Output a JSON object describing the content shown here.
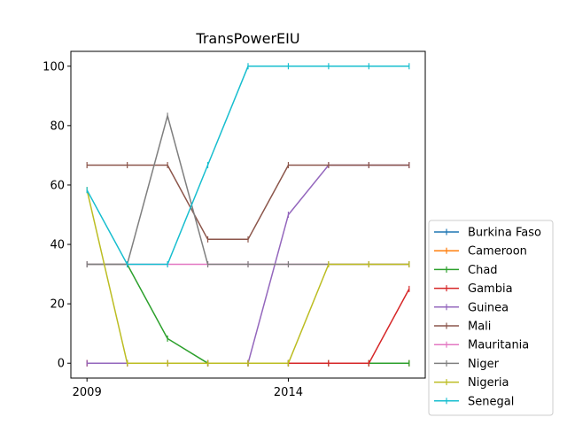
{
  "chart_data": {
    "type": "line",
    "title": "TransPowerEIU",
    "xlabel": "",
    "ylabel": "",
    "x": [
      2009,
      2010,
      2011,
      2012,
      2013,
      2014,
      2015,
      2016,
      2017
    ],
    "xlim": [
      2008.6,
      2017.4
    ],
    "ylim": [
      -5,
      105
    ],
    "xticks": [
      2009,
      2014
    ],
    "yticks": [
      0,
      20,
      40,
      60,
      80,
      100
    ],
    "grid": false,
    "legend_position": "lower-right-outside",
    "series": [
      {
        "name": "Burkina Faso",
        "color": "#1f77b4",
        "values": [
          0,
          0,
          0,
          0,
          0,
          0,
          0,
          0,
          0
        ]
      },
      {
        "name": "Cameroon",
        "color": "#ff7f0e",
        "values": [
          0,
          0,
          0,
          0,
          0,
          0,
          0,
          0,
          0
        ]
      },
      {
        "name": "Chad",
        "color": "#2ca02c",
        "values": [
          33.3,
          33.3,
          8.3,
          0,
          0,
          0,
          0,
          0,
          0
        ]
      },
      {
        "name": "Gambia",
        "color": "#d62728",
        "values": [
          0,
          0,
          0,
          0,
          0,
          0,
          0,
          0,
          25
        ]
      },
      {
        "name": "Guinea",
        "color": "#9467bd",
        "values": [
          0,
          0,
          0,
          0,
          0,
          50,
          66.7,
          66.7,
          66.7
        ]
      },
      {
        "name": "Mali",
        "color": "#8c564b",
        "values": [
          66.7,
          66.7,
          66.7,
          41.7,
          41.7,
          66.7,
          66.7,
          66.7,
          66.7
        ]
      },
      {
        "name": "Mauritania",
        "color": "#e377c2",
        "values": [
          33.3,
          33.3,
          33.3,
          33.3,
          33.3,
          33.3,
          33.3,
          33.3,
          33.3
        ]
      },
      {
        "name": "Niger",
        "color": "#7f7f7f",
        "values": [
          33.3,
          33.3,
          83.3,
          33.3,
          33.3,
          33.3,
          33.3,
          33.3,
          33.3
        ]
      },
      {
        "name": "Nigeria",
        "color": "#bcbd22",
        "values": [
          58.3,
          0,
          0,
          0,
          0,
          0,
          33.3,
          33.3,
          33.3
        ]
      },
      {
        "name": "Senegal",
        "color": "#17becf",
        "values": [
          58.3,
          33.3,
          33.3,
          66.7,
          100,
          100,
          100,
          100,
          100
        ]
      }
    ]
  }
}
